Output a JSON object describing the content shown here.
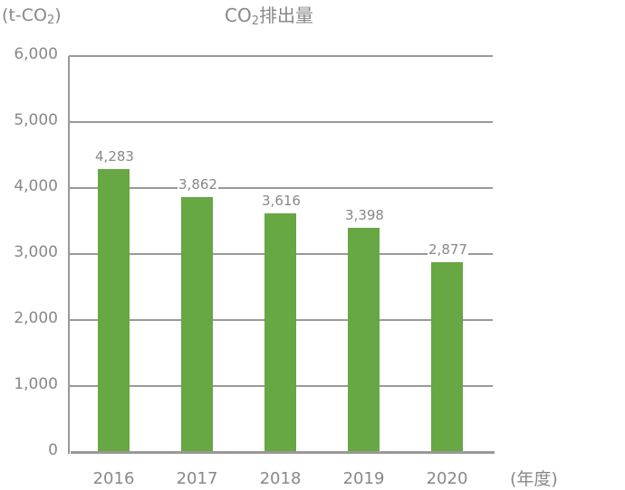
{
  "chart_data": {
    "type": "bar",
    "title": "CO2排出量",
    "title_main": "CO",
    "title_sub": "2",
    "title_rest": "排出量",
    "ylabel": "(t-CO2)",
    "ylabel_prefix": "(t-CO",
    "ylabel_sub": "2",
    "ylabel_suffix": ")",
    "xlabel": "(年度)",
    "categories": [
      "2016",
      "2017",
      "2018",
      "2019",
      "2020"
    ],
    "values": [
      4283,
      3862,
      3616,
      3398,
      2877
    ],
    "value_labels": [
      "4,283",
      "3,862",
      "3,616",
      "3,398",
      "2,877"
    ],
    "yticks": [
      "6,000",
      "5,000",
      "4,000",
      "3,000",
      "2,000",
      "1,000",
      "0"
    ],
    "ylim": [
      0,
      6000
    ],
    "grid": true,
    "bar_color": "#67a744",
    "grid_color": "#999999",
    "text_color": "#888888"
  }
}
